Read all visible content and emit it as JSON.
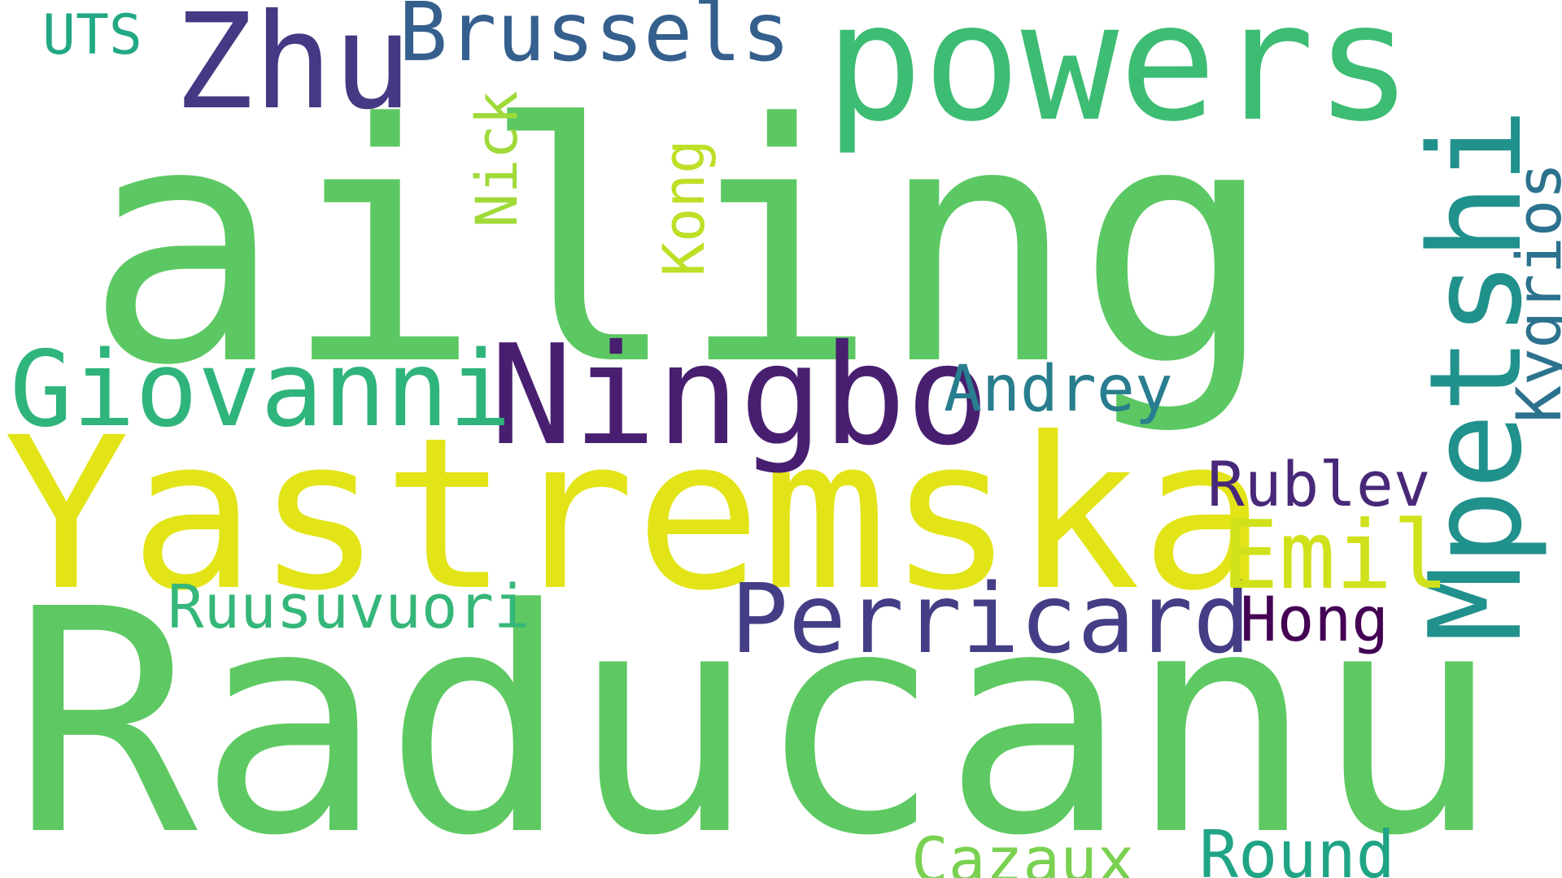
{
  "words": [
    {
      "text": "ailing",
      "color": "#5cc863"
    },
    {
      "text": "Raducanu",
      "color": "#5ec962"
    },
    {
      "text": "Yastremska",
      "color": "#e2e418"
    },
    {
      "text": "powers",
      "color": "#3dbc74"
    },
    {
      "text": "Ningbo",
      "color": "#481f70"
    },
    {
      "text": "Zhu",
      "color": "#443983"
    },
    {
      "text": "Brussels",
      "color": "#355f8d"
    },
    {
      "text": "Giovanni",
      "color": "#2fb47c"
    },
    {
      "text": "Mpetshi",
      "color": "#21918c"
    },
    {
      "text": "Perricard",
      "color": "#433e85"
    },
    {
      "text": "Emil",
      "color": "#d0e11c"
    },
    {
      "text": "Kygrios",
      "color": "#2c728e"
    },
    {
      "text": "Ruusuvuori",
      "color": "#35b779"
    },
    {
      "text": "Andrey",
      "color": "#287d8e"
    },
    {
      "text": "Rublev",
      "color": "#482878"
    },
    {
      "text": "Hong",
      "color": "#440154"
    },
    {
      "text": "Round",
      "color": "#20a486"
    },
    {
      "text": "Cazaux",
      "color": "#7ad151"
    },
    {
      "text": "Kong",
      "color": "#bddf26"
    },
    {
      "text": "Nick",
      "color": "#a0da39"
    },
    {
      "text": "UTS",
      "color": "#22a884"
    }
  ]
}
